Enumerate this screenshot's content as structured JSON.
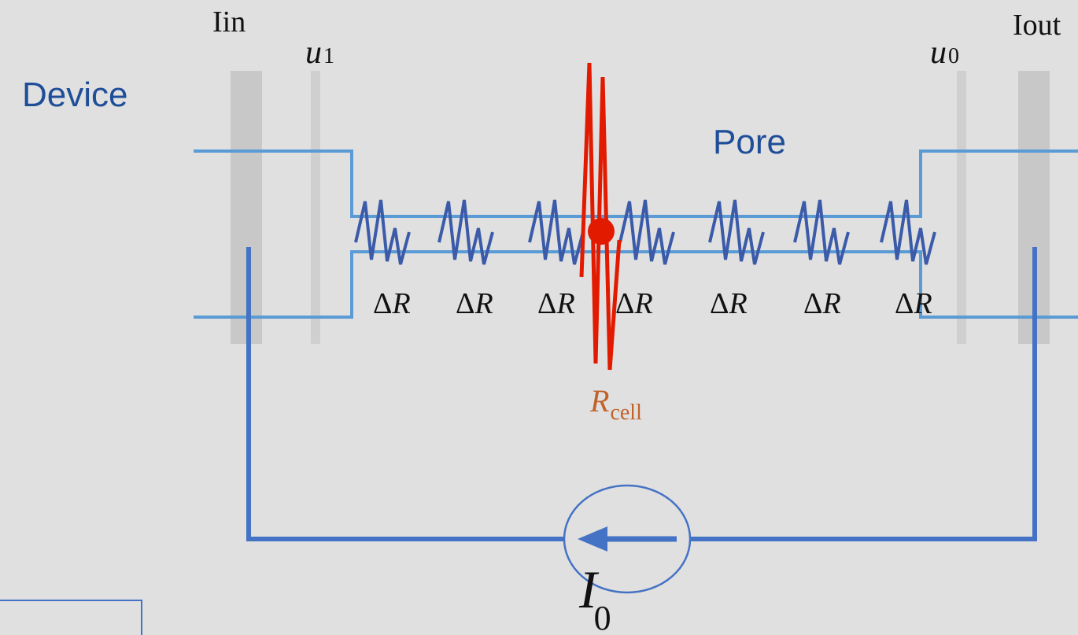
{
  "labels": {
    "device": "Device",
    "pore": "Pore",
    "i_in": "Iin",
    "i_out": "Iout",
    "u1_base": "u",
    "u1_sub": "1",
    "u0_base": "u",
    "u0_sub": "0",
    "r_cell_base": "R",
    "r_cell_sub": "cell",
    "source_base": "I",
    "source_sub": "0"
  },
  "resistors": [
    {
      "delta": "Δ",
      "symbol": "R"
    },
    {
      "delta": "Δ",
      "symbol": "R"
    },
    {
      "delta": "Δ",
      "symbol": "R"
    },
    {
      "delta": "Δ",
      "symbol": "R"
    },
    {
      "delta": "Δ",
      "symbol": "R"
    },
    {
      "delta": "Δ",
      "symbol": "R"
    },
    {
      "delta": "Δ",
      "symbol": "R"
    }
  ],
  "colors": {
    "background": "#e0e0e0",
    "channel": "#5b9bd5",
    "wire": "#4472c4",
    "resistor": "#3b5ba9",
    "cell": "#e11a00",
    "electrode": "#c8c8c8",
    "label_blue": "#1f4e99",
    "r_cell_label": "#c0632b"
  }
}
